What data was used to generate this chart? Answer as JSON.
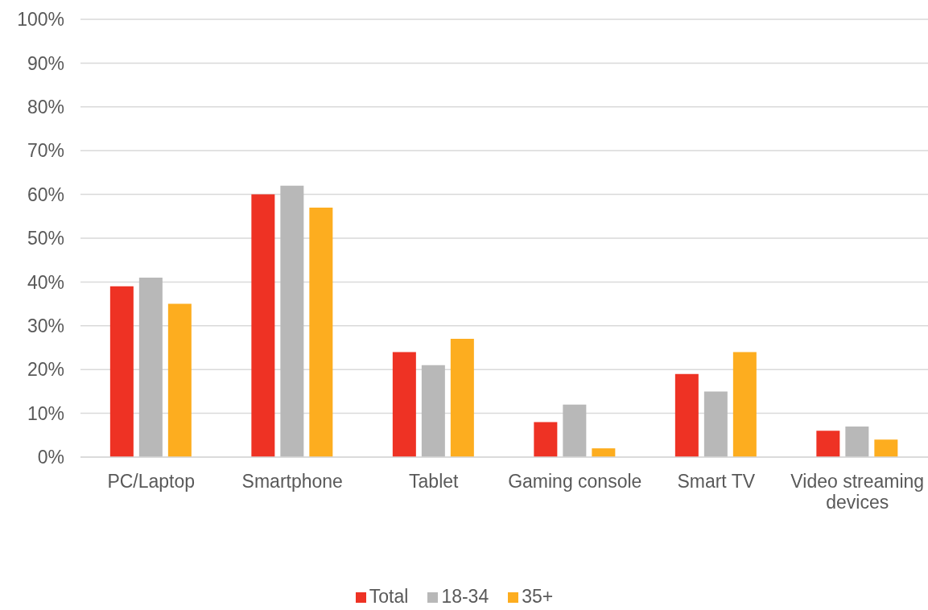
{
  "chart_data": {
    "type": "bar",
    "categories": [
      "PC/Laptop",
      "Smartphone",
      "Tablet",
      "Gaming console",
      "Smart TV",
      "Video streaming devices"
    ],
    "series": [
      {
        "name": "Total",
        "color": "#ee3224",
        "values": [
          39,
          60,
          24,
          8,
          19,
          6
        ]
      },
      {
        "name": "18-34",
        "color": "#b8b8b8",
        "values": [
          41,
          62,
          21,
          12,
          15,
          7
        ]
      },
      {
        "name": "35+",
        "color": "#fdad1f",
        "values": [
          35,
          57,
          27,
          2,
          24,
          4
        ]
      }
    ],
    "ylim": [
      0,
      100
    ],
    "yticks": [
      {
        "value": 0,
        "label": "0%"
      },
      {
        "value": 10,
        "label": "10%"
      },
      {
        "value": 20,
        "label": "20%"
      },
      {
        "value": 30,
        "label": "30%"
      },
      {
        "value": 40,
        "label": "40%"
      },
      {
        "value": 50,
        "label": "50%"
      },
      {
        "value": 60,
        "label": "60%"
      },
      {
        "value": 70,
        "label": "70%"
      },
      {
        "value": 80,
        "label": "80%"
      },
      {
        "value": 90,
        "label": "90%"
      },
      {
        "value": 100,
        "label": "100%"
      }
    ],
    "grid": "y",
    "legend": "bottom"
  }
}
